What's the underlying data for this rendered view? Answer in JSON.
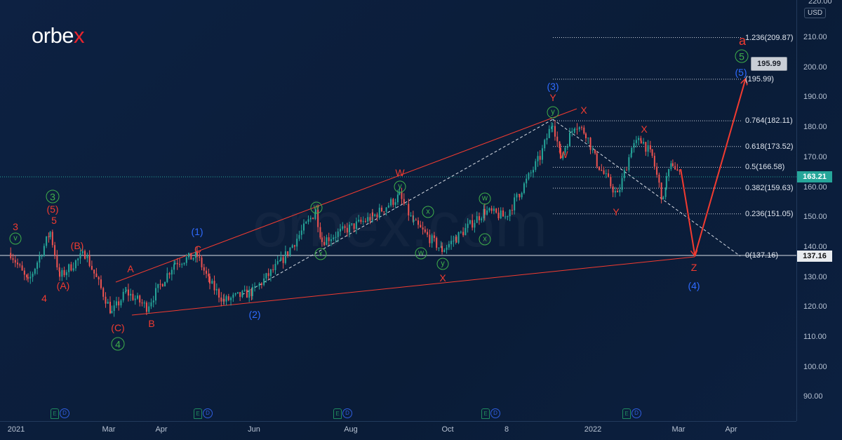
{
  "brand": {
    "logo_main": "orbe",
    "logo_accent": "x",
    "watermark": "orbex.com"
  },
  "currency": "USD",
  "current_price": "163.21",
  "level_price": "137.16",
  "target_callout": "195.99",
  "colors": {
    "bg": "#0b1d38",
    "up": "#26a69a",
    "down": "#ef5350",
    "wave_red": "#f23b30",
    "wave_blue": "#2f6bff",
    "wave_green": "#3fb04a"
  },
  "price_axis": {
    "top_tick": "220.00",
    "ticks": [
      "210.00",
      "200.00",
      "190.00",
      "180.00",
      "170.00",
      "160.00",
      "150.00",
      "140.00",
      "130.00",
      "120.00",
      "110.00",
      "100.00",
      "90.00"
    ]
  },
  "time_axis": [
    "2021",
    "Mar",
    "Apr",
    "Jun",
    "Aug",
    "Oct",
    "8",
    "2022",
    "Mar",
    "Apr"
  ],
  "fib_levels": [
    {
      "label": "1.236(209.87)",
      "price": 209.87
    },
    {
      "label": "(195.99)",
      "price": 195.99
    },
    {
      "label": "0.764(182.11)",
      "price": 182.11
    },
    {
      "label": "0.618(173.52)",
      "price": 173.52
    },
    {
      "label": "0.5(166.58)",
      "price": 166.58
    },
    {
      "label": "0.382(159.63)",
      "price": 159.63
    },
    {
      "label": "0.236(151.05)",
      "price": 151.05
    },
    {
      "label": "0(137.16)",
      "price": 137.16
    }
  ],
  "wave_labels": [
    "3",
    "v",
    "3",
    "(5)",
    "5",
    "(B)",
    "4",
    "(A)",
    "(C)",
    "4",
    "A",
    "B",
    "(1)",
    "C",
    "(2)",
    "w",
    "x",
    "W",
    "y",
    "x",
    "w",
    "y",
    "X",
    "w",
    "x",
    "(3)",
    "Y",
    "y",
    "X",
    "W",
    "X",
    "Y",
    "Z",
    "(4)",
    "a",
    "5",
    "(5)"
  ],
  "events": [
    {
      "e": "E",
      "d": "D"
    },
    {
      "e": "E",
      "d": "D"
    },
    {
      "e": "E",
      "d": "D"
    },
    {
      "e": "E",
      "d": "D"
    },
    {
      "e": "E",
      "d": "D"
    }
  ],
  "chart_data": {
    "type": "candlestick",
    "title": "",
    "xlabel": "",
    "ylabel": "USD",
    "ylim": [
      85,
      220
    ],
    "x_origin": "2021-01-01",
    "x_unit": "days since 2021-01-01",
    "path_points": [
      [
        1,
        138
      ],
      [
        12,
        128
      ],
      [
        26,
        145
      ],
      [
        32,
        130
      ],
      [
        48,
        138
      ],
      [
        65,
        118
      ],
      [
        74,
        125
      ],
      [
        87,
        120
      ],
      [
        105,
        135
      ],
      [
        119,
        137
      ],
      [
        127,
        128
      ],
      [
        136,
        122
      ],
      [
        154,
        125
      ],
      [
        172,
        135
      ],
      [
        194,
        152
      ],
      [
        198,
        142
      ],
      [
        230,
        150
      ],
      [
        247,
        157
      ],
      [
        256,
        148
      ],
      [
        274,
        139
      ],
      [
        283,
        143
      ],
      [
        301,
        152
      ],
      [
        314,
        150
      ],
      [
        323,
        158
      ],
      [
        336,
        170
      ],
      [
        344,
        182
      ],
      [
        349,
        170
      ],
      [
        358,
        181
      ],
      [
        365,
        178
      ],
      [
        372,
        168
      ],
      [
        385,
        157
      ],
      [
        394,
        173
      ],
      [
        400,
        176
      ],
      [
        407,
        170
      ],
      [
        414,
        155
      ],
      [
        416,
        163
      ],
      [
        420,
        168
      ],
      [
        425,
        163.21
      ]
    ],
    "projection": [
      [
        425,
        166
      ],
      [
        434,
        137.16
      ],
      [
        466,
        195.99
      ]
    ]
  }
}
